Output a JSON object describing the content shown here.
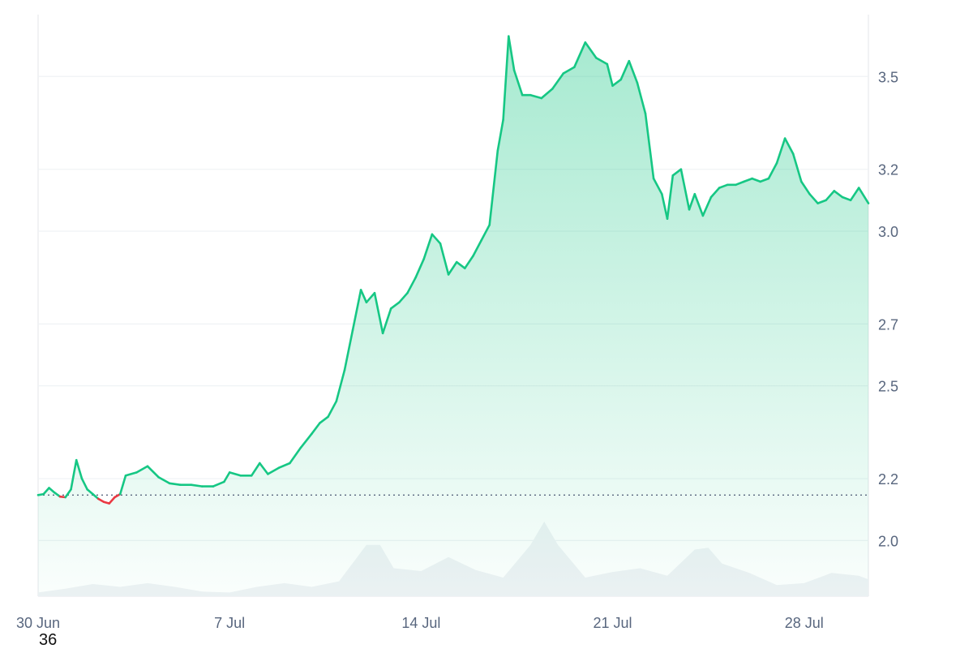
{
  "chart_data": {
    "type": "area",
    "baseline": 2.147,
    "ylim": [
      1.82,
      3.7
    ],
    "y_ticks": [
      2.0,
      2.2,
      2.5,
      2.7,
      3.0,
      3.2,
      3.5
    ],
    "y_tick_labels": [
      "2.0",
      "2.2",
      "2.5",
      "2.7",
      "3.0",
      "3.2",
      "3.5"
    ],
    "x_range_days": [
      0,
      30.35
    ],
    "x_tick_days": [
      0,
      7,
      14,
      21,
      28
    ],
    "x_tick_labels": [
      "30 Jun",
      "7 Jul",
      "14 Jul",
      "21 Jul",
      "28 Jul"
    ],
    "grid": true,
    "colors": {
      "up": "#16c784",
      "down": "#ea3943",
      "volume": "#eff2f5",
      "grid": "#eff2f5",
      "baseline": "#58667e",
      "axis_text": "#58667e"
    },
    "series": [
      {
        "x": [
          0,
          0.2,
          0.4,
          0.6,
          0.8,
          1.0,
          1.2,
          1.4,
          1.6,
          1.8,
          2.0,
          2.2,
          2.4,
          2.6,
          2.8,
          3.0,
          3.2,
          3.6,
          4.0,
          4.4,
          4.8,
          5.2,
          5.6,
          6.0,
          6.4,
          6.8,
          7.0,
          7.4,
          7.8,
          8.1,
          8.4,
          8.8,
          9.2,
          9.6,
          10.0,
          10.3,
          10.6,
          10.9,
          11.2,
          11.5,
          11.8,
          12.0,
          12.3,
          12.6,
          12.9,
          13.2,
          13.5,
          13.8,
          14.1,
          14.4,
          14.7,
          15.0,
          15.3,
          15.6,
          15.9,
          16.2,
          16.5,
          16.8,
          17.0,
          17.2,
          17.4,
          17.7,
          18.0,
          18.4,
          18.8,
          19.2,
          19.6,
          20.0,
          20.4,
          20.8,
          21.0,
          21.3,
          21.6,
          21.9,
          22.2,
          22.5,
          22.8,
          23.0,
          23.2,
          23.5,
          23.8,
          24.0,
          24.3,
          24.6,
          24.9,
          25.2,
          25.5,
          25.8,
          26.1,
          26.4,
          26.7,
          27.0,
          27.3,
          27.6,
          27.9,
          28.2,
          28.5,
          28.8,
          29.1,
          29.4,
          29.7,
          30.0,
          30.35
        ],
        "values": [
          2.147,
          2.15,
          2.17,
          2.155,
          2.142,
          2.14,
          2.165,
          2.26,
          2.2,
          2.165,
          2.15,
          2.135,
          2.125,
          2.12,
          2.14,
          2.15,
          2.21,
          2.22,
          2.24,
          2.205,
          2.185,
          2.18,
          2.18,
          2.175,
          2.175,
          2.19,
          2.22,
          2.21,
          2.21,
          2.25,
          2.215,
          2.235,
          2.25,
          2.3,
          2.345,
          2.38,
          2.4,
          2.45,
          2.55,
          2.68,
          2.81,
          2.77,
          2.8,
          2.67,
          2.75,
          2.77,
          2.8,
          2.85,
          2.91,
          2.99,
          2.96,
          2.86,
          2.9,
          2.88,
          2.92,
          2.97,
          3.02,
          3.26,
          3.36,
          3.63,
          3.52,
          3.44,
          3.44,
          3.43,
          3.46,
          3.51,
          3.53,
          3.61,
          3.56,
          3.54,
          3.47,
          3.49,
          3.55,
          3.48,
          3.38,
          3.17,
          3.12,
          3.04,
          3.18,
          3.2,
          3.07,
          3.12,
          3.05,
          3.11,
          3.14,
          3.15,
          3.15,
          3.16,
          3.17,
          3.16,
          3.17,
          3.22,
          3.3,
          3.25,
          3.16,
          3.12,
          3.09,
          3.1,
          3.13,
          3.11,
          3.1,
          3.14,
          3.09
        ]
      }
    ],
    "volume": {
      "x": [
        0,
        1,
        2,
        3,
        4,
        5,
        6,
        7,
        8,
        9,
        10,
        11,
        12,
        12.5,
        13,
        14,
        15,
        16,
        17,
        18,
        18.5,
        19,
        20,
        21,
        22,
        23,
        24,
        24.5,
        25,
        26,
        27,
        28,
        29,
        30,
        30.35
      ],
      "values": [
        0.04,
        0.08,
        0.13,
        0.1,
        0.14,
        0.1,
        0.05,
        0.04,
        0.1,
        0.14,
        0.1,
        0.16,
        0.55,
        0.55,
        0.3,
        0.27,
        0.42,
        0.28,
        0.2,
        0.55,
        0.8,
        0.55,
        0.2,
        0.26,
        0.3,
        0.22,
        0.5,
        0.52,
        0.35,
        0.25,
        0.12,
        0.14,
        0.25,
        0.22,
        0.18
      ]
    }
  },
  "overlay": {
    "corner_number": "36"
  }
}
